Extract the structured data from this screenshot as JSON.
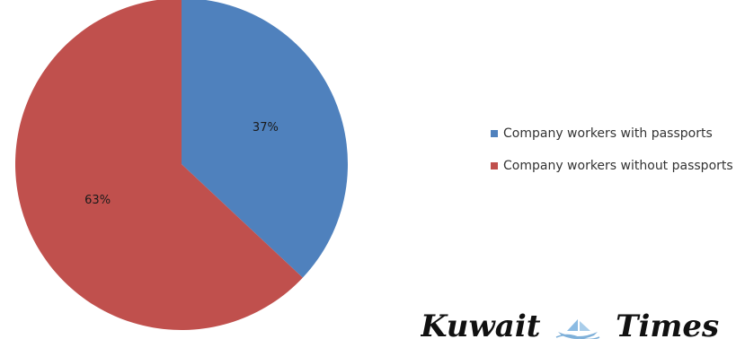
{
  "chart_data": {
    "type": "pie",
    "title": "",
    "categories": [
      "Company workers with passports",
      "Company workers without passports"
    ],
    "values": [
      37,
      63
    ],
    "data_labels": [
      "37%",
      "63%"
    ],
    "colors": [
      "#4f81bd",
      "#c0504d"
    ],
    "start_angle_deg": 0,
    "direction": "clockwise",
    "legend": "right"
  },
  "legend": {
    "items": [
      {
        "label": "Company workers with passports",
        "color": "#4f81bd"
      },
      {
        "label": "Company workers without passports",
        "color": "#c0504d"
      }
    ]
  },
  "logo": {
    "left_word": "Kuwait",
    "right_word": "Times",
    "emblem_icon": "boat-icon"
  }
}
